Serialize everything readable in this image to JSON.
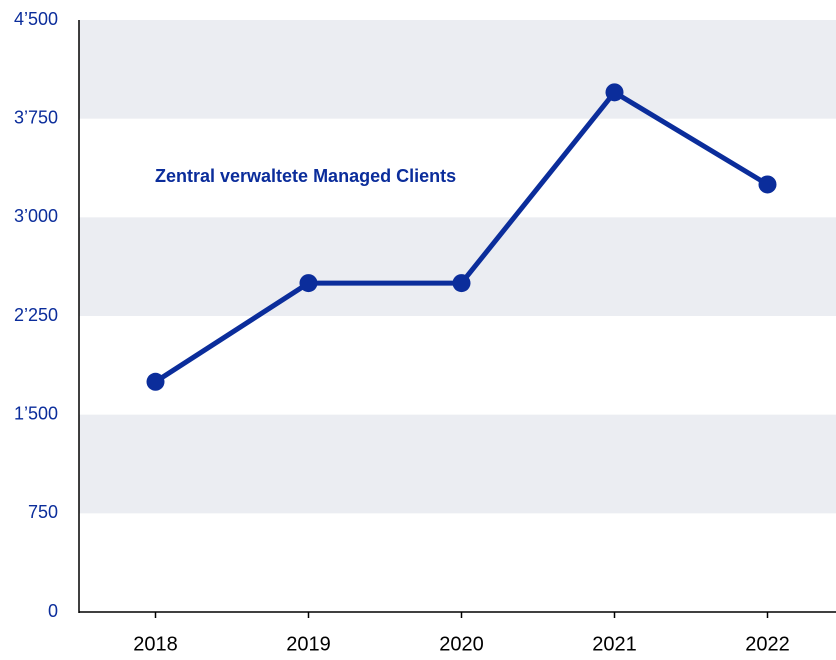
{
  "chart_data": {
    "type": "line",
    "categories": [
      "2018",
      "2019",
      "2020",
      "2021",
      "2022"
    ],
    "series": [
      {
        "name": "Zentral verwaltete Managed Clients",
        "color": "#0b2d9b",
        "values": [
          1750,
          2500,
          2500,
          3950,
          3250
        ]
      }
    ],
    "ylim": [
      0,
      4500
    ],
    "yticks": [
      0,
      750,
      {
        "value": 1500,
        "label": "1’500"
      },
      {
        "value": 2250,
        "label": "2’250"
      },
      {
        "value": 3000,
        "label": "3’000"
      },
      {
        "value": 3750,
        "label": "3’750"
      },
      {
        "value": 4500,
        "label": "4’500"
      }
    ],
    "grid": "bands",
    "band_color": "#ebedf2"
  }
}
